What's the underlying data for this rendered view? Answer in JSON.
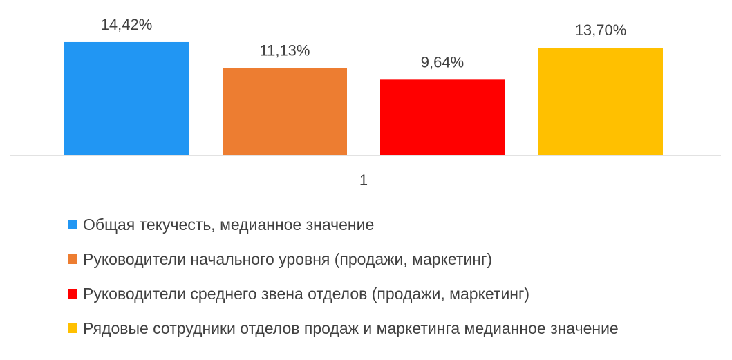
{
  "chart_data": {
    "type": "bar",
    "categories": [
      "1"
    ],
    "series": [
      {
        "name": "Общая текучесть, медианное значение",
        "values": [
          14.42
        ],
        "label": "14,42%",
        "color": "#2196F3"
      },
      {
        "name": "Руководители начального уровня (продажи, маркетинг)",
        "values": [
          11.13
        ],
        "label": "11,13%",
        "color": "#ED7D31"
      },
      {
        "name": "Руководители среднего звена отделов (продажи, маркетинг)",
        "values": [
          9.64
        ],
        "label": "9,64%",
        "color": "#FF0000"
      },
      {
        "name": "Рядовые сотрудники отделов продаж и маркетинга медианное значение",
        "values": [
          13.7
        ],
        "label": "13,70%",
        "color": "#FFC000"
      }
    ],
    "ylim": [
      0,
      16
    ],
    "grid": false,
    "legend_position": "bottom"
  }
}
